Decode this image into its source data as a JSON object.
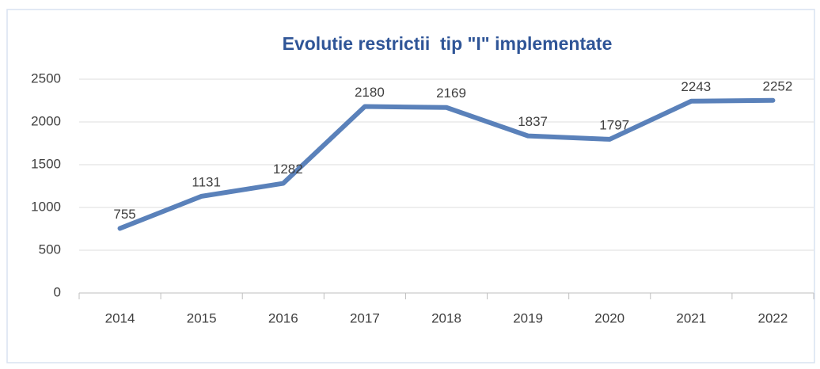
{
  "chart_data": {
    "type": "line",
    "title": "Evolutie restrictii  tip \"I\" implementate",
    "categories": [
      "2014",
      "2015",
      "2016",
      "2017",
      "2018",
      "2019",
      "2020",
      "2021",
      "2022"
    ],
    "values": [
      755,
      1131,
      1282,
      2180,
      2169,
      1837,
      1797,
      2243,
      2252
    ],
    "color": "#5a81ba",
    "ylim": [
      0,
      2500
    ],
    "yticks": [
      0,
      500,
      1000,
      1500,
      2000,
      2500
    ],
    "grid": true
  }
}
